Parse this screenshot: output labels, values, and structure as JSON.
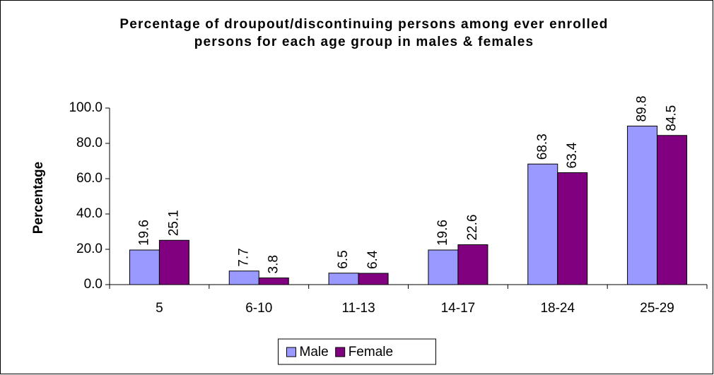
{
  "chart_data": {
    "type": "bar",
    "title": "Percentage of droupout/discontinuing persons among ever enrolled persons for each age group in males & females",
    "y_label": "Percentage",
    "categories": [
      "5",
      "6-10",
      "11-13",
      "14-17",
      "18-24",
      "25-29"
    ],
    "series": [
      {
        "name": "Male",
        "color": "#9999ff",
        "values": [
          19.6,
          7.7,
          6.5,
          19.6,
          68.3,
          89.8
        ]
      },
      {
        "name": "Female",
        "color": "#800080",
        "values": [
          25.1,
          3.8,
          6.4,
          22.6,
          63.4,
          84.5
        ]
      }
    ],
    "ylim": [
      0,
      100
    ],
    "yticks": [
      {
        "value": 0,
        "label": "0.0"
      },
      {
        "value": 20,
        "label": "20.0"
      },
      {
        "value": 40,
        "label": "40.0"
      },
      {
        "value": 60,
        "label": "60.0"
      },
      {
        "value": 80,
        "label": "80.0"
      },
      {
        "value": 100,
        "label": "100.0"
      }
    ],
    "legend": "bottom"
  }
}
